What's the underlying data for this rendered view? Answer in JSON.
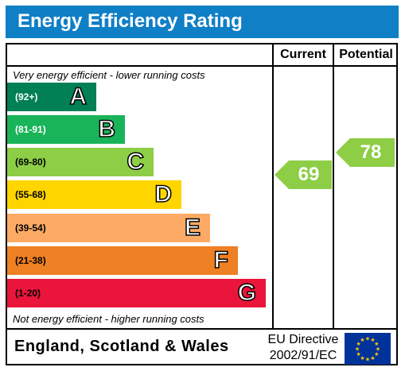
{
  "title": "Energy Efficiency Rating",
  "columns": {
    "current": "Current",
    "potential": "Potential"
  },
  "top_caption": "Very energy efficient - lower running costs",
  "bottom_caption": "Not energy efficient - higher running costs",
  "bands": [
    {
      "range": "(92+)",
      "letter": "A",
      "color": "#008054",
      "text_color": "#ffffff"
    },
    {
      "range": "(81-91)",
      "letter": "B",
      "color": "#19b459",
      "text_color": "#ffffff"
    },
    {
      "range": "(69-80)",
      "letter": "C",
      "color": "#8dce46",
      "text_color": "#000000"
    },
    {
      "range": "(55-68)",
      "letter": "D",
      "color": "#ffd500",
      "text_color": "#000000"
    },
    {
      "range": "(39-54)",
      "letter": "E",
      "color": "#fcaa65",
      "text_color": "#000000"
    },
    {
      "range": "(21-38)",
      "letter": "F",
      "color": "#ef8023",
      "text_color": "#000000"
    },
    {
      "range": "(1-20)",
      "letter": "G",
      "color": "#e9153b",
      "text_color": "#000000"
    }
  ],
  "current": {
    "value": "69",
    "band": "C",
    "color": "#8dce46"
  },
  "potential": {
    "value": "78",
    "band": "C",
    "color": "#8dce46"
  },
  "footer": {
    "region": "England, Scotland & Wales",
    "directive_line1": "EU Directive",
    "directive_line2": "2002/91/EC",
    "flag_icon": "eu-flag-icon"
  }
}
